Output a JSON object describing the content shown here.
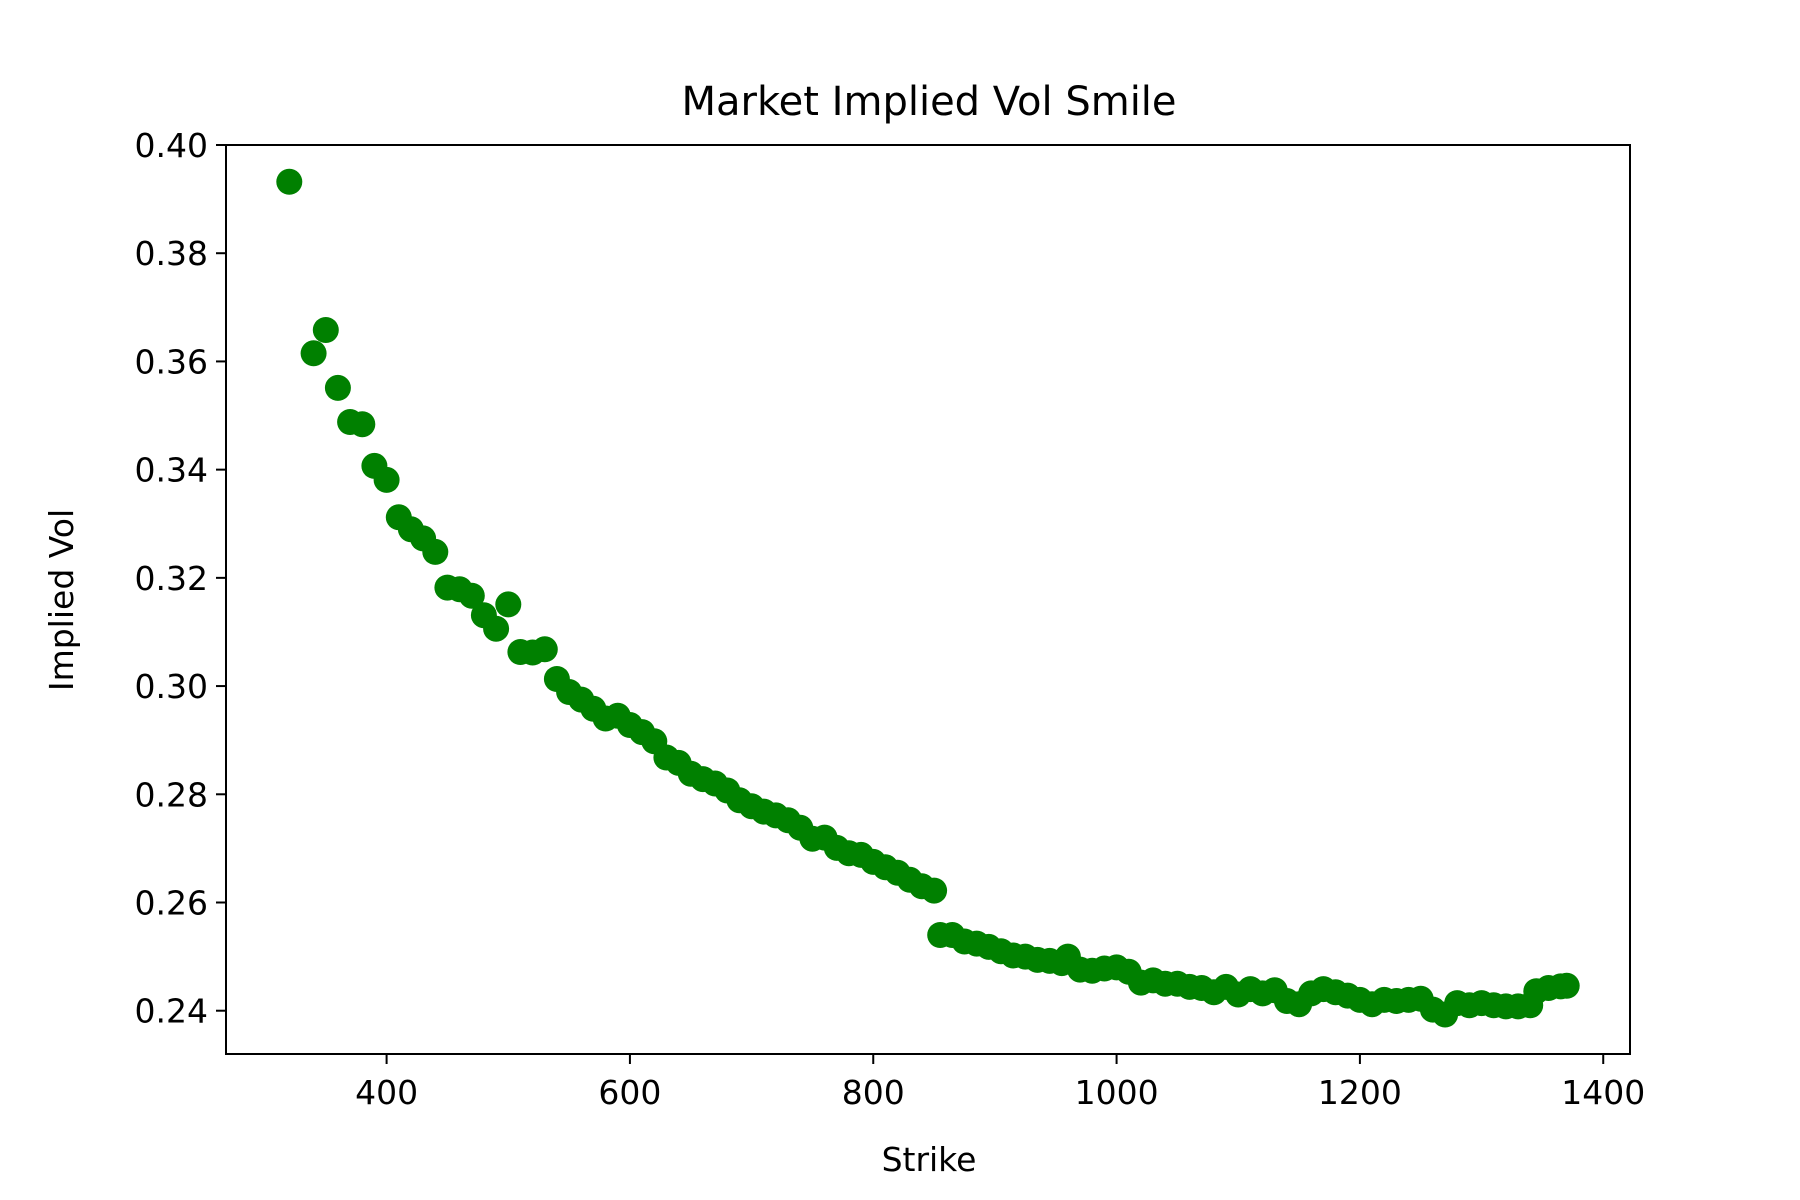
{
  "chart_data": {
    "type": "scatter",
    "title": "Market Implied Vol Smile",
    "xlabel": "Strike",
    "ylabel": "Implied Vol",
    "xlim": [
      268,
      1422
    ],
    "ylim": [
      0.232,
      0.4
    ],
    "xticks": [
      400,
      600,
      800,
      1000,
      1200,
      1400
    ],
    "yticks": [
      0.24,
      0.26,
      0.28,
      0.3,
      0.32,
      0.34,
      0.36,
      0.38,
      0.4
    ],
    "xtick_labels": [
      "400",
      "600",
      "800",
      "1000",
      "1200",
      "1400"
    ],
    "ytick_labels": [
      "0.24",
      "0.26",
      "0.28",
      "0.30",
      "0.32",
      "0.34",
      "0.36",
      "0.38",
      "0.40"
    ],
    "grid": false,
    "marker_color": "#008000",
    "points": [
      [
        320,
        0.3932
      ],
      [
        340,
        0.3615
      ],
      [
        350,
        0.3658
      ],
      [
        360,
        0.3551
      ],
      [
        370,
        0.3488
      ],
      [
        380,
        0.3484
      ],
      [
        390,
        0.3407
      ],
      [
        400,
        0.3381
      ],
      [
        410,
        0.3312
      ],
      [
        420,
        0.329
      ],
      [
        430,
        0.3273
      ],
      [
        440,
        0.3248
      ],
      [
        450,
        0.3182
      ],
      [
        460,
        0.3179
      ],
      [
        470,
        0.3167
      ],
      [
        480,
        0.3131
      ],
      [
        490,
        0.3106
      ],
      [
        500,
        0.3151
      ],
      [
        510,
        0.3063
      ],
      [
        520,
        0.3062
      ],
      [
        530,
        0.3068
      ],
      [
        540,
        0.3013
      ],
      [
        550,
        0.2989
      ],
      [
        560,
        0.2975
      ],
      [
        570,
        0.2958
      ],
      [
        580,
        0.294
      ],
      [
        590,
        0.2945
      ],
      [
        600,
        0.2928
      ],
      [
        610,
        0.2915
      ],
      [
        620,
        0.2898
      ],
      [
        630,
        0.2868
      ],
      [
        640,
        0.2858
      ],
      [
        650,
        0.2838
      ],
      [
        660,
        0.2828
      ],
      [
        670,
        0.282
      ],
      [
        680,
        0.2807
      ],
      [
        690,
        0.2789
      ],
      [
        700,
        0.2778
      ],
      [
        710,
        0.2768
      ],
      [
        720,
        0.2761
      ],
      [
        730,
        0.2752
      ],
      [
        740,
        0.2738
      ],
      [
        750,
        0.2718
      ],
      [
        760,
        0.272
      ],
      [
        770,
        0.2701
      ],
      [
        780,
        0.2691
      ],
      [
        790,
        0.2688
      ],
      [
        800,
        0.2675
      ],
      [
        810,
        0.2665
      ],
      [
        820,
        0.2655
      ],
      [
        830,
        0.2642
      ],
      [
        840,
        0.263
      ],
      [
        850,
        0.2622
      ],
      [
        855,
        0.254
      ],
      [
        865,
        0.254
      ],
      [
        875,
        0.2528
      ],
      [
        885,
        0.2524
      ],
      [
        895,
        0.2518
      ],
      [
        905,
        0.251
      ],
      [
        915,
        0.2502
      ],
      [
        925,
        0.25
      ],
      [
        935,
        0.2494
      ],
      [
        945,
        0.2492
      ],
      [
        955,
        0.2488
      ],
      [
        960,
        0.25
      ],
      [
        970,
        0.2476
      ],
      [
        980,
        0.2474
      ],
      [
        990,
        0.2478
      ],
      [
        1000,
        0.248
      ],
      [
        1010,
        0.2472
      ],
      [
        1020,
        0.2452
      ],
      [
        1030,
        0.2456
      ],
      [
        1040,
        0.245
      ],
      [
        1050,
        0.245
      ],
      [
        1060,
        0.2444
      ],
      [
        1070,
        0.2442
      ],
      [
        1080,
        0.2434
      ],
      [
        1090,
        0.2444
      ],
      [
        1100,
        0.243
      ],
      [
        1110,
        0.244
      ],
      [
        1120,
        0.2432
      ],
      [
        1130,
        0.2438
      ],
      [
        1140,
        0.2418
      ],
      [
        1150,
        0.2412
      ],
      [
        1160,
        0.2432
      ],
      [
        1170,
        0.244
      ],
      [
        1180,
        0.2434
      ],
      [
        1190,
        0.2428
      ],
      [
        1200,
        0.242
      ],
      [
        1210,
        0.2412
      ],
      [
        1220,
        0.242
      ],
      [
        1230,
        0.2418
      ],
      [
        1240,
        0.242
      ],
      [
        1250,
        0.2422
      ],
      [
        1260,
        0.2402
      ],
      [
        1270,
        0.2393
      ],
      [
        1280,
        0.2414
      ],
      [
        1290,
        0.241
      ],
      [
        1300,
        0.2414
      ],
      [
        1310,
        0.241
      ],
      [
        1320,
        0.2408
      ],
      [
        1330,
        0.2408
      ],
      [
        1340,
        0.241
      ],
      [
        1345,
        0.2436
      ],
      [
        1355,
        0.2442
      ],
      [
        1365,
        0.2445
      ],
      [
        1370,
        0.2446
      ]
    ]
  }
}
